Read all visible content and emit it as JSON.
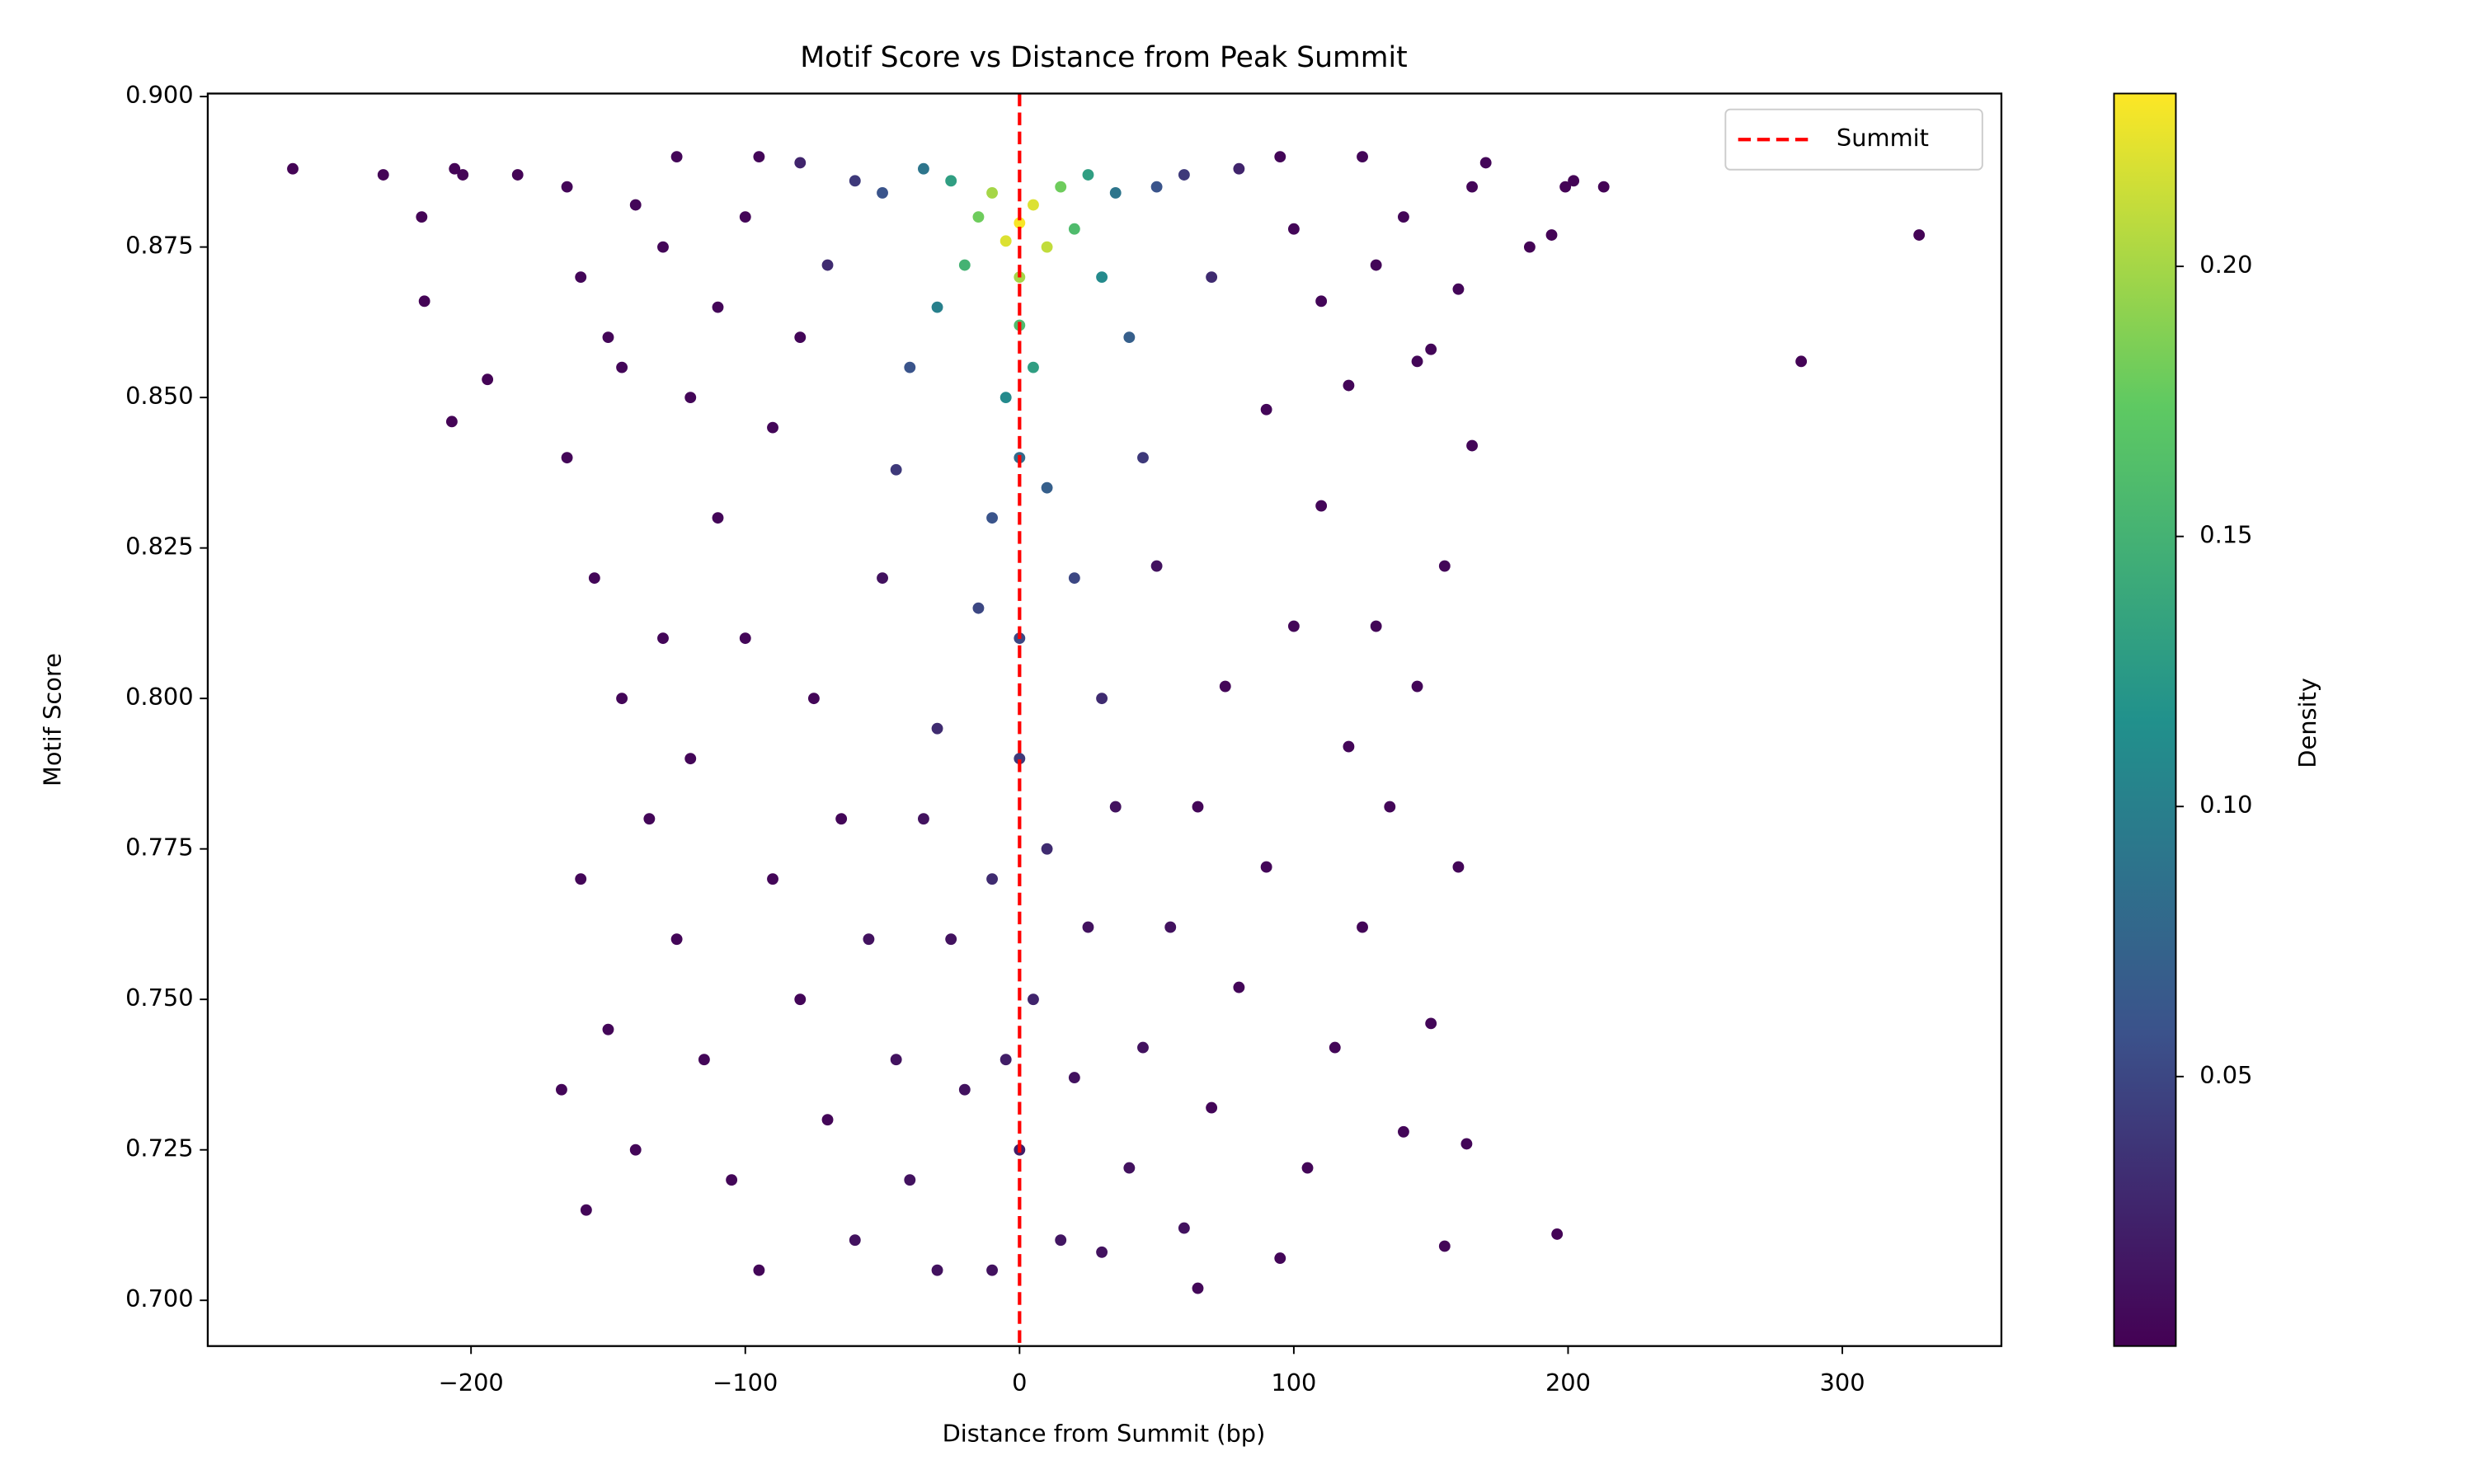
{
  "chart_data": {
    "type": "scatter",
    "title": "Motif Score vs Distance from Peak Summit",
    "xlabel": "Distance from Summit (bp)",
    "ylabel": "Motif Score",
    "x": [
      -265,
      -232,
      -218,
      -217,
      -207,
      -206,
      -203,
      -183,
      -194,
      186,
      194,
      199,
      202,
      213,
      285,
      328,
      196,
      -165,
      -160,
      -150,
      -140,
      -130,
      -120,
      -110,
      -100,
      -90,
      -80,
      -165,
      -155,
      -145,
      -135,
      -125,
      -115,
      -105,
      -95,
      -160,
      -150,
      -140,
      -130,
      -120,
      -110,
      -100,
      -90,
      -80,
      -70,
      -60,
      -75,
      -65,
      -55,
      -50,
      -45,
      -40,
      -35,
      -25,
      -20,
      -30,
      -167,
      -158,
      -145,
      -125,
      -95,
      165,
      160,
      150,
      140,
      130,
      120,
      110,
      100,
      90,
      165,
      155,
      145,
      135,
      125,
      115,
      105,
      95,
      160,
      150,
      140,
      130,
      120,
      110,
      100,
      90,
      80,
      70,
      60,
      75,
      65,
      55,
      50,
      45,
      40,
      35,
      25,
      20,
      30,
      163,
      155,
      145,
      125,
      95,
      170,
      65,
      -10,
      15,
      -5,
      0,
      80,
      -80,
      5,
      70,
      -70,
      30,
      -30,
      10,
      -10,
      60,
      -60,
      45,
      -45,
      0,
      20,
      -15,
      0,
      50,
      -50,
      -10,
      -40,
      10,
      40,
      0,
      35,
      -35,
      -30,
      -5,
      30,
      25,
      -25,
      5,
      -20,
      20,
      0,
      15,
      -15,
      0,
      -10,
      10,
      5,
      -5,
      0
    ],
    "y": [
      0.888,
      0.887,
      0.88,
      0.866,
      0.846,
      0.888,
      0.887,
      0.887,
      0.853,
      0.875,
      0.877,
      0.885,
      0.886,
      0.885,
      0.856,
      0.877,
      0.711,
      0.885,
      0.87,
      0.86,
      0.882,
      0.875,
      0.85,
      0.865,
      0.88,
      0.845,
      0.86,
      0.84,
      0.82,
      0.8,
      0.78,
      0.76,
      0.74,
      0.72,
      0.705,
      0.77,
      0.745,
      0.725,
      0.81,
      0.79,
      0.83,
      0.81,
      0.77,
      0.75,
      0.73,
      0.71,
      0.8,
      0.78,
      0.76,
      0.82,
      0.74,
      0.72,
      0.78,
      0.76,
      0.735,
      0.705,
      0.735,
      0.715,
      0.855,
      0.89,
      0.89,
      0.885,
      0.868,
      0.858,
      0.88,
      0.872,
      0.852,
      0.866,
      0.878,
      0.848,
      0.842,
      0.822,
      0.802,
      0.782,
      0.762,
      0.742,
      0.722,
      0.707,
      0.772,
      0.746,
      0.728,
      0.812,
      0.792,
      0.832,
      0.812,
      0.772,
      0.752,
      0.732,
      0.712,
      0.802,
      0.782,
      0.762,
      0.822,
      0.742,
      0.722,
      0.782,
      0.762,
      0.737,
      0.708,
      0.726,
      0.709,
      0.856,
      0.89,
      0.89,
      0.889,
      0.702,
      0.705,
      0.71,
      0.74,
      0.725,
      0.888,
      0.889,
      0.75,
      0.87,
      0.872,
      0.8,
      0.795,
      0.775,
      0.77,
      0.887,
      0.886,
      0.84,
      0.838,
      0.79,
      0.82,
      0.815,
      0.81,
      0.885,
      0.884,
      0.83,
      0.855,
      0.835,
      0.86,
      0.84,
      0.884,
      0.888,
      0.865,
      0.85,
      0.87,
      0.887,
      0.886,
      0.855,
      0.872,
      0.878,
      0.862,
      0.885,
      0.88,
      0.87,
      0.884,
      0.875,
      0.882,
      0.876,
      0.879
    ],
    "density": [
      0.002,
      0.002,
      0.002,
      0.002,
      0.002,
      0.002,
      0.002,
      0.002,
      0.002,
      0.002,
      0.002,
      0.002,
      0.002,
      0.002,
      0.002,
      0.002,
      0.002,
      0.004,
      0.004,
      0.004,
      0.004,
      0.004,
      0.004,
      0.004,
      0.004,
      0.004,
      0.004,
      0.004,
      0.004,
      0.004,
      0.004,
      0.004,
      0.004,
      0.004,
      0.004,
      0.004,
      0.004,
      0.004,
      0.004,
      0.004,
      0.004,
      0.004,
      0.004,
      0.004,
      0.004,
      0.012,
      0.004,
      0.004,
      0.012,
      0.012,
      0.012,
      0.012,
      0.012,
      0.012,
      0.012,
      0.012,
      0.004,
      0.004,
      0.004,
      0.004,
      0.004,
      0.004,
      0.004,
      0.004,
      0.004,
      0.004,
      0.004,
      0.004,
      0.004,
      0.004,
      0.004,
      0.004,
      0.004,
      0.004,
      0.004,
      0.004,
      0.004,
      0.004,
      0.004,
      0.004,
      0.004,
      0.004,
      0.004,
      0.004,
      0.004,
      0.004,
      0.004,
      0.004,
      0.012,
      0.004,
      0.004,
      0.012,
      0.012,
      0.012,
      0.012,
      0.012,
      0.012,
      0.012,
      0.012,
      0.004,
      0.004,
      0.004,
      0.004,
      0.004,
      0.004,
      0.005,
      0.012,
      0.015,
      0.02,
      0.02,
      0.025,
      0.025,
      0.025,
      0.03,
      0.03,
      0.03,
      0.03,
      0.03,
      0.03,
      0.04,
      0.04,
      0.04,
      0.04,
      0.04,
      0.05,
      0.05,
      0.05,
      0.06,
      0.06,
      0.06,
      0.06,
      0.07,
      0.07,
      0.08,
      0.09,
      0.09,
      0.1,
      0.11,
      0.11,
      0.13,
      0.13,
      0.13,
      0.15,
      0.16,
      0.16,
      0.18,
      0.18,
      0.2,
      0.2,
      0.21,
      0.22,
      0.22,
      0.23
    ],
    "colormap": [
      "#440154",
      "#3b528b",
      "#21918c",
      "#5ec962",
      "#fde725"
    ],
    "xlim": [
      -296,
      358
    ],
    "ylim": [
      0.6924,
      0.9005
    ],
    "xticks": [
      {
        "value": -200,
        "label": "−200"
      },
      {
        "value": -100,
        "label": "−100"
      },
      0,
      100,
      200,
      300
    ],
    "yticks": [
      {
        "value": 0.7,
        "label": "0.700"
      },
      0.725,
      {
        "value": 0.75,
        "label": "0.750"
      },
      0.775,
      {
        "value": 0.8,
        "label": "0.800"
      },
      0.825,
      {
        "value": 0.85,
        "label": "0.850"
      },
      0.875,
      {
        "value": 0.9,
        "label": "0.900"
      }
    ],
    "vline": {
      "x": 0,
      "color": "#ff0000",
      "label": "Summit"
    },
    "legend": "upper right",
    "colorbar": {
      "label": "Density",
      "lim": [
        0.0001,
        0.232
      ],
      "ticks": [
        0.05,
        {
          "value": 0.1,
          "label": "0.10"
        },
        0.15,
        {
          "value": 0.2,
          "label": "0.20"
        }
      ]
    }
  }
}
